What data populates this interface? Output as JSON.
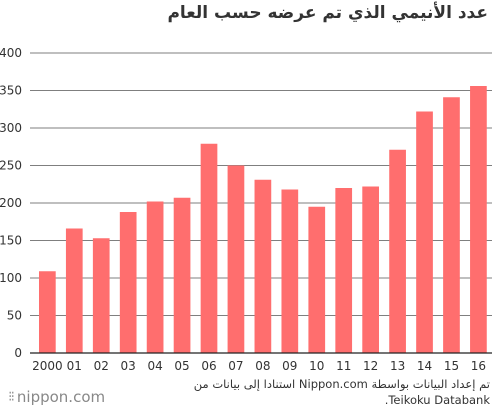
{
  "title": "عدد الأنيمي الذي تم عرضه حسب العام",
  "source_line1": "تم إعداد البيانات بواسطة Nippon.com استنادا إلى بيانات من",
  "source_line2": "Teikoku Databank.",
  "brand": "nippon.com",
  "colors": {
    "bar": "#ff6e6e",
    "grid": "#555555",
    "axis": "#222222"
  },
  "chart_data": {
    "type": "bar",
    "categories": [
      "2000",
      "01",
      "02",
      "03",
      "04",
      "05",
      "06",
      "07",
      "08",
      "09",
      "10",
      "11",
      "12",
      "13",
      "14",
      "15",
      "16"
    ],
    "values": [
      109,
      166,
      153,
      188,
      202,
      207,
      279,
      250,
      231,
      218,
      195,
      220,
      222,
      271,
      322,
      341,
      356
    ],
    "ylim": [
      0,
      400
    ],
    "yticks": [
      0,
      50,
      100,
      150,
      200,
      250,
      300,
      350,
      400
    ],
    "grid": true,
    "legend": "none"
  }
}
